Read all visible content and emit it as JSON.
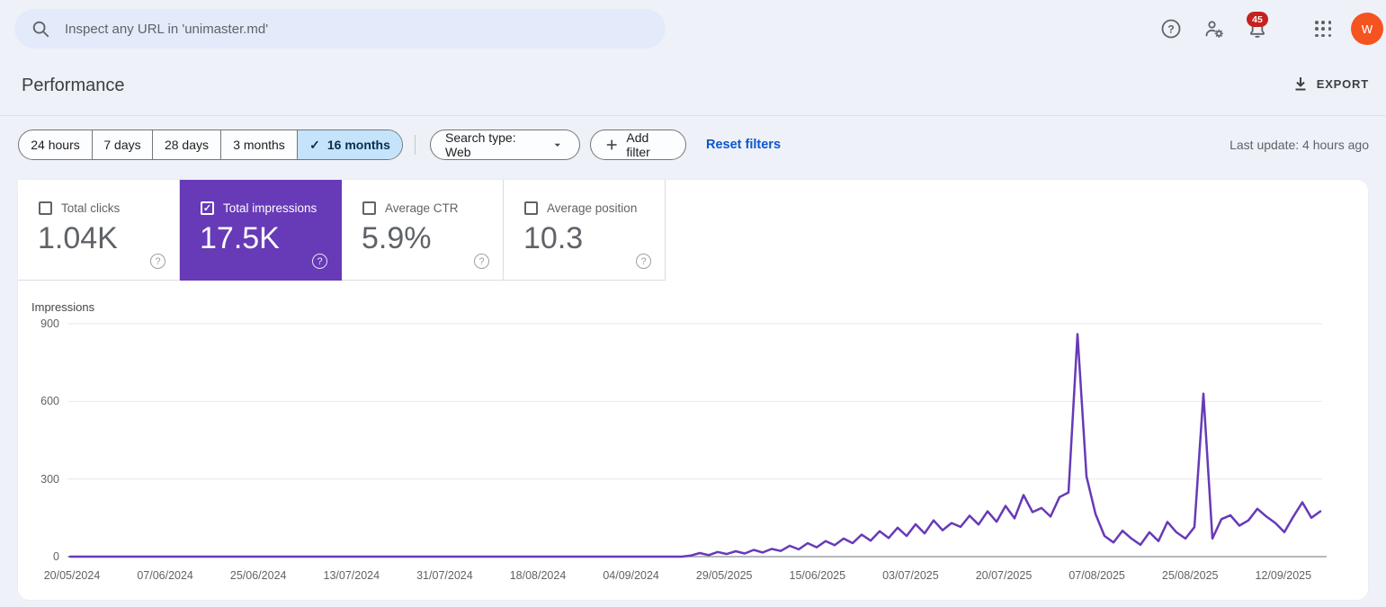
{
  "header": {
    "search_placeholder": "Inspect any URL in 'unimaster.md'",
    "notification_count": "45",
    "avatar_letter": "w"
  },
  "page": {
    "title": "Performance",
    "export_label": "EXPORT",
    "last_update": "Last update: 4 hours ago"
  },
  "date_ranges": {
    "options": [
      "24 hours",
      "7 days",
      "28 days",
      "3 months",
      "16 months"
    ],
    "selected": "16 months",
    "widths": [
      81,
      67,
      76,
      85,
      117
    ]
  },
  "filters": {
    "search_type_label": "Search type: Web",
    "add_filter_label": "Add filter",
    "reset_label": "Reset filters"
  },
  "metrics": {
    "cards": [
      {
        "label": "Total clicks",
        "value": "1.04K",
        "checked": false,
        "selected": false
      },
      {
        "label": "Total impressions",
        "value": "17.5K",
        "checked": true,
        "selected": true,
        "color": "#673ab7"
      },
      {
        "label": "Average CTR",
        "value": "5.9%",
        "checked": false,
        "selected": false
      },
      {
        "label": "Average position",
        "value": "10.3",
        "checked": false,
        "selected": false
      }
    ]
  },
  "chart_data": {
    "type": "line",
    "title": "Impressions",
    "ylabel": "Impressions",
    "ylim": [
      0,
      900
    ],
    "y_ticks": [
      0,
      300,
      600,
      900
    ],
    "grid": "horizontal",
    "x_tick_labels": [
      "20/05/2024",
      "07/06/2024",
      "25/06/2024",
      "13/07/2024",
      "31/07/2024",
      "18/08/2024",
      "04/09/2024",
      "29/05/2025",
      "15/06/2025",
      "03/07/2025",
      "20/07/2025",
      "07/08/2025",
      "25/08/2025",
      "12/09/2025"
    ],
    "series": [
      {
        "name": "Impressions",
        "color": "#673ab7",
        "values": [
          0,
          0,
          0,
          0,
          0,
          0,
          0,
          0,
          0,
          0,
          0,
          0,
          0,
          0,
          0,
          0,
          0,
          0,
          0,
          0,
          0,
          0,
          0,
          0,
          0,
          0,
          0,
          0,
          0,
          0,
          0,
          0,
          0,
          0,
          0,
          0,
          0,
          0,
          0,
          0,
          0,
          0,
          0,
          0,
          0,
          0,
          0,
          0,
          0,
          0,
          0,
          0,
          0,
          0,
          0,
          0,
          0,
          0,
          0,
          0,
          0,
          0,
          0,
          0,
          0,
          0,
          0,
          0,
          0,
          4,
          14,
          6,
          18,
          10,
          21,
          12,
          26,
          16,
          30,
          22,
          42,
          28,
          52,
          36,
          60,
          44,
          70,
          52,
          85,
          62,
          98,
          72,
          112,
          80,
          125,
          90,
          140,
          102,
          130,
          115,
          158,
          124,
          175,
          135,
          196,
          148,
          238,
          172,
          188,
          155,
          230,
          248,
          860,
          310,
          165,
          80,
          55,
          100,
          70,
          46,
          94,
          60,
          134,
          94,
          70,
          114,
          630,
          70,
          145,
          160,
          120,
          140,
          185,
          155,
          130,
          95,
          155,
          210,
          150,
          175
        ]
      }
    ]
  }
}
